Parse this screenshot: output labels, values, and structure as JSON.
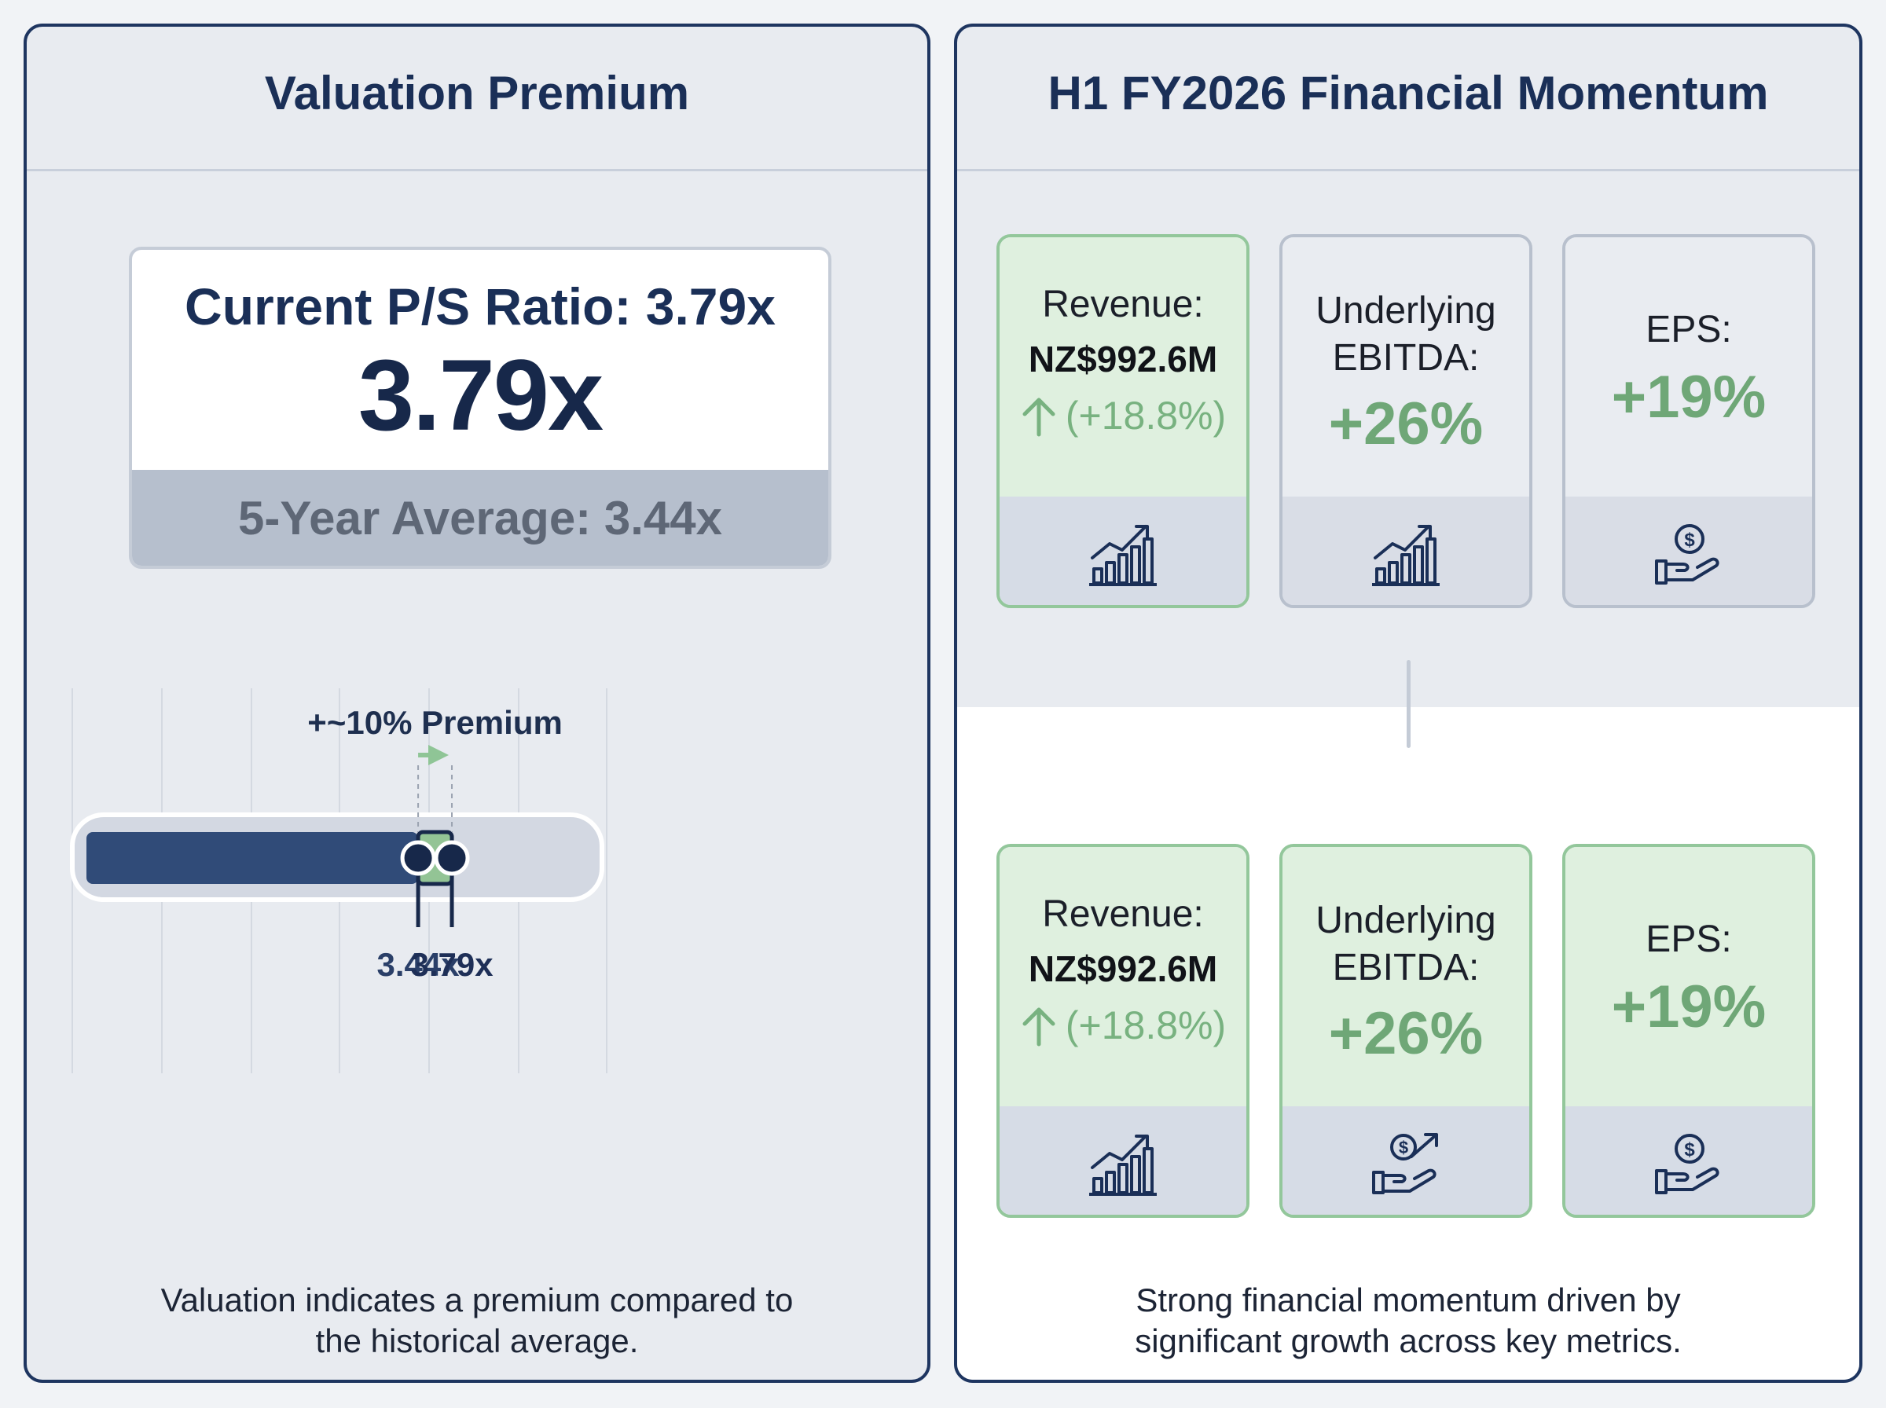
{
  "left": {
    "title": "Valuation Premium",
    "ratio_label": "Current P/S Ratio: 3.79x",
    "ratio_value": "3.79x",
    "avg_label": "5-Year Average: 3.44x",
    "caption_line1": "Valuation indicates a premium compared to",
    "caption_line2": "the historical average."
  },
  "right": {
    "title": "H1 FY2026 Financial Momentum",
    "caption_line1": "Strong financial momentum driven by",
    "caption_line2": "significant growth across key metrics.",
    "row1": [
      {
        "label": "Revenue:",
        "amount": "NZ$992.6M",
        "change": "(+18.8%)",
        "icon": "bar-chart-growth-icon"
      },
      {
        "label_line1": "Underlying",
        "label_line2": "EBITDA:",
        "value": "+26%",
        "icon": "bar-chart-growth-icon"
      },
      {
        "label": "EPS:",
        "value": "+19%",
        "icon": "hand-coin-icon"
      }
    ],
    "row2": [
      {
        "label": "Revenue:",
        "amount": "NZ$992.6M",
        "change": "(+18.8%)",
        "icon": "bar-chart-growth-icon"
      },
      {
        "label_line1": "Underlying",
        "label_line2": "EBITDA:",
        "value": "+26%",
        "icon": "hand-coin-growth-icon"
      },
      {
        "label": "EPS:",
        "value": "+19%",
        "icon": "hand-coin-icon"
      }
    ]
  },
  "chart_data": {
    "type": "bar",
    "categories": [
      "5-Year Average",
      "Current P/S Ratio"
    ],
    "values": [
      3.44,
      3.79
    ],
    "tick_labels": [
      "3.44x",
      "3.79x"
    ],
    "annotation": "+~10% Premium",
    "xlim": [
      0,
      4.5
    ],
    "grid": true,
    "colors": {
      "base": "#304b78",
      "premium": "#93c495",
      "track": "#d3d8e2",
      "arrow": "#8fc596"
    }
  }
}
